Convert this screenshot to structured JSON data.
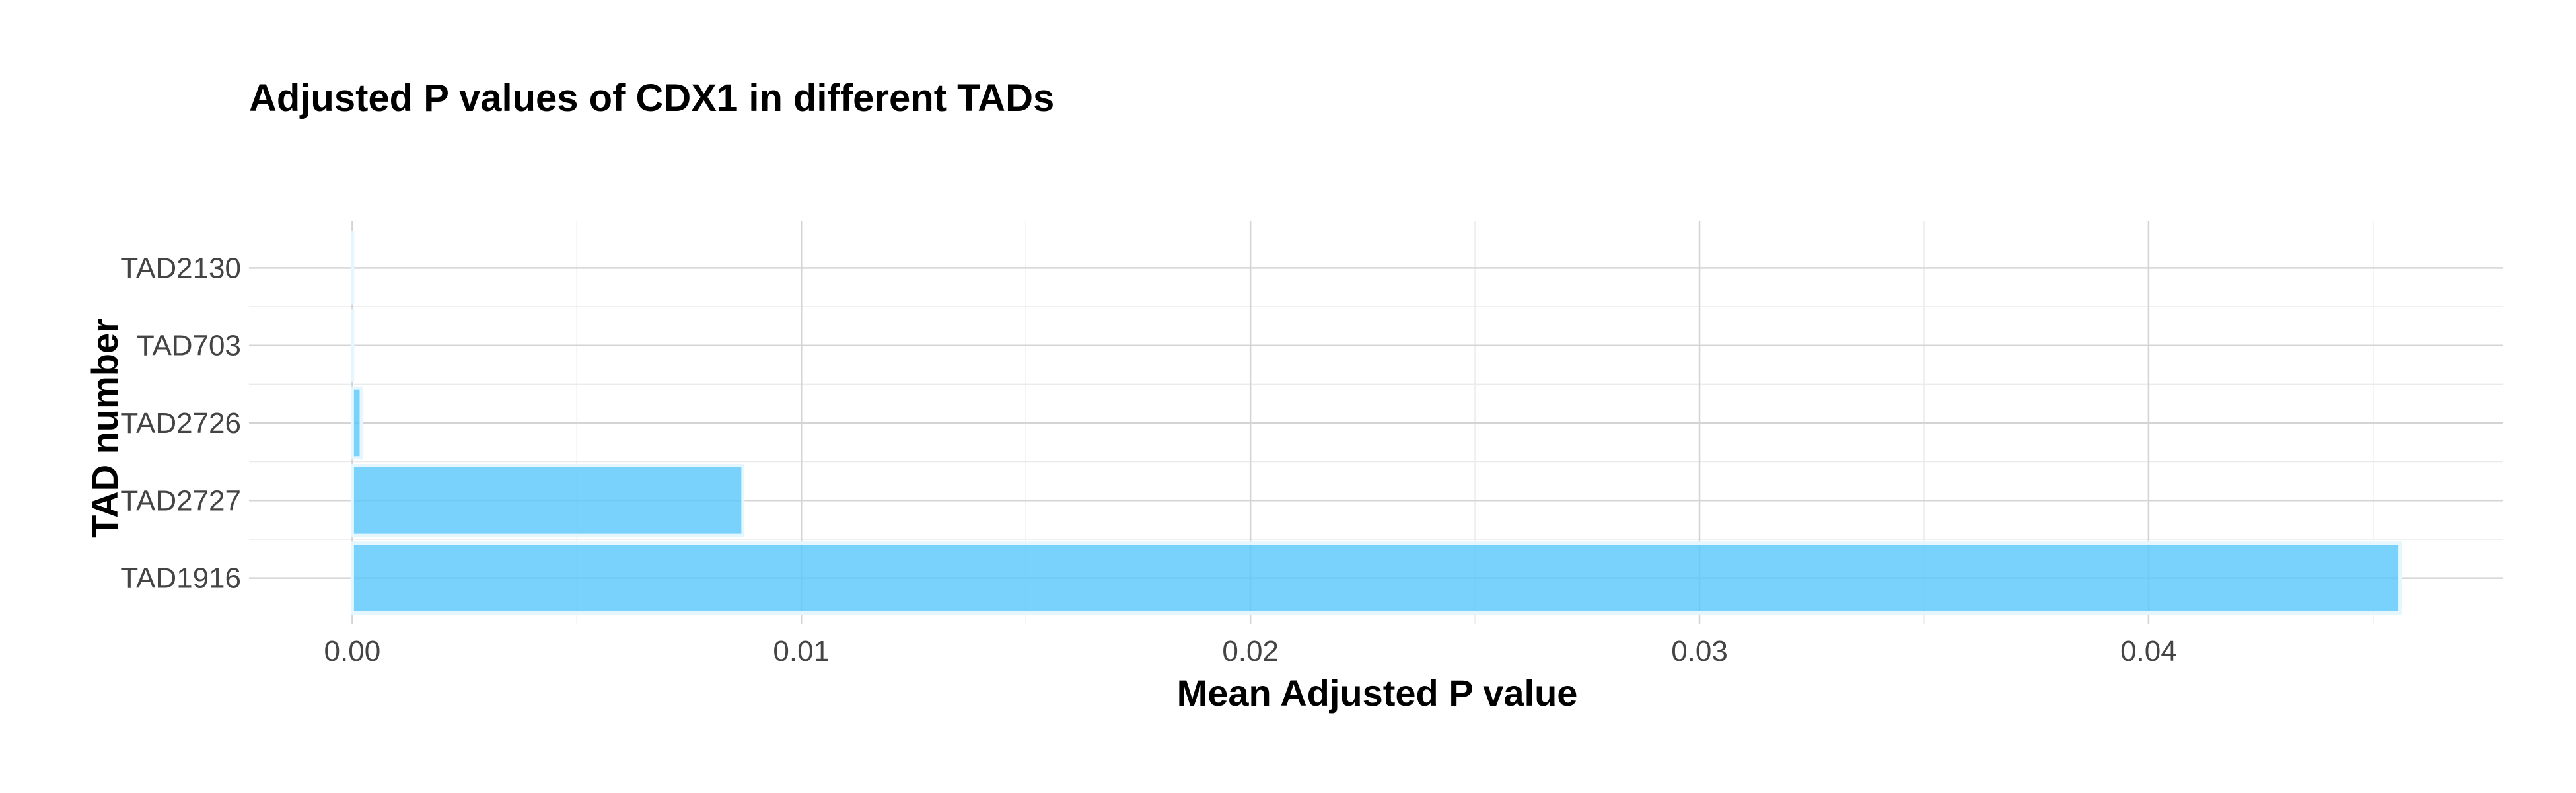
{
  "chart_data": {
    "type": "bar",
    "orientation": "horizontal",
    "title": "Adjusted P values of CDX1 in different TADs",
    "xlabel": "Mean Adjusted P value",
    "ylabel": "TAD number",
    "categories": [
      "TAD1916",
      "TAD2727",
      "TAD2726",
      "TAD703",
      "TAD2130"
    ],
    "values": [
      0.0456,
      0.0087,
      0.0002,
      0.0,
      0.0
    ],
    "xlim": [
      -0.0023,
      0.0479
    ],
    "xticks": [
      0.0,
      0.01,
      0.02,
      0.03,
      0.04
    ],
    "xtick_labels": [
      "0.00",
      "0.01",
      "0.02",
      "0.03",
      "0.04"
    ],
    "grid": true,
    "legend": "none",
    "bar_color": "#5ac8fa"
  }
}
